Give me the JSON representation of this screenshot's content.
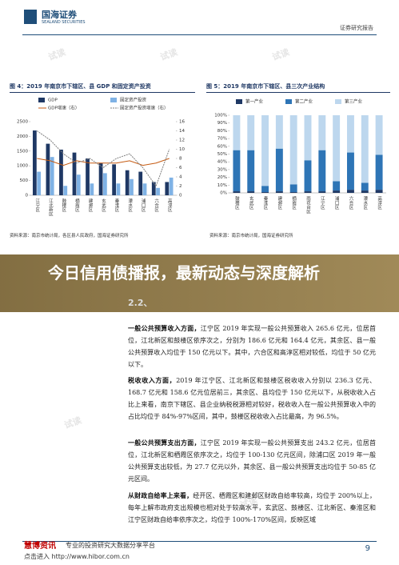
{
  "header": {
    "logo": "国海证券",
    "logo_en": "SEALAND SECURITIES",
    "report_type": "证券研究报告"
  },
  "watermark": "试读",
  "figures": [
    {
      "caption": "图 4：2019 年南京市下辖区、县 GDP 和固定资产投资",
      "source": "资料来源：南京市统计局，各区县人民政府，国海证券研究所",
      "chart_data": {
        "type": "bar",
        "categories": [
          "江宁区",
          "江北新区",
          "鼓楼区",
          "栖霞区",
          "建邺区",
          "玄武区",
          "秦淮区",
          "溧水区",
          "浦口区",
          "六合区",
          "高淳区"
        ],
        "series": [
          {
            "name": "GDP",
            "color": "#1f3864",
            "values": [
              2200,
              1750,
              1550,
              1450,
              1250,
              1100,
              1050,
              850,
              800,
              450,
              450
            ]
          },
          {
            "name": "固定资产投资",
            "color": "#7fb2e5",
            "values": [
              800,
              1300,
              320,
              700,
              400,
              750,
              400,
              550,
              400,
              250,
              600
            ]
          },
          {
            "name": "GDP增速（右）",
            "color": "#c55a11",
            "type": "line",
            "axis": "y2",
            "values": [
              8,
              7.5,
              6.5,
              7.5,
              7,
              7,
              7,
              7.5,
              6.5,
              7,
              8
            ]
          },
          {
            "name": "固定资产投资增速（右）",
            "color": "#7f7f7f",
            "type": "line",
            "dashed": true,
            "axis": "y2",
            "values": [
              14,
              12,
              9,
              7,
              8,
              6,
              8,
              9,
              6,
              2,
              10
            ]
          }
        ],
        "ylim": [
          0,
          2500
        ],
        "yticks": [
          0,
          500,
          1000,
          1500,
          2000,
          2500
        ],
        "y2lim": [
          0,
          16
        ],
        "y2ticks": [
          0,
          2,
          4,
          6,
          8,
          10,
          12,
          14,
          16
        ]
      }
    },
    {
      "caption": "图 5：2019 年南京市下辖区、县三次产业结构",
      "source": "资料来源：南京市统计局，国海证券研究所",
      "chart_data": {
        "type": "stacked_bar",
        "categories": [
          "鼓楼区",
          "玄武区",
          "秦淮区",
          "建邺区",
          "栖霞区",
          "雨花台区",
          "江宁区",
          "浦口区",
          "六合区",
          "溧水区",
          "高淳区"
        ],
        "series": [
          {
            "name": "第一产业",
            "color": "#1f3864",
            "values": [
              2,
              2,
              1,
              2,
              1,
              2,
              2,
              3,
              4,
              3,
              4
            ]
          },
          {
            "name": "第二产业",
            "color": "#2e75b6",
            "values": [
              53,
              53,
              8,
              55,
              10,
              40,
              53,
              12,
              48,
              10,
              45
            ]
          },
          {
            "name": "第三产业",
            "color": "#bdd7ee",
            "values": [
              45,
              45,
              91,
              43,
              89,
              58,
              45,
              85,
              48,
              87,
              51
            ]
          }
        ],
        "ylim": [
          0,
          100
        ],
        "yticks": [
          {
            "value": 0,
            "label": "0%"
          },
          {
            "value": 10,
            "label": "10%"
          },
          {
            "value": 20,
            "label": "20%"
          },
          {
            "value": 30,
            "label": "30%"
          },
          {
            "value": 40,
            "label": "40%"
          },
          {
            "value": 50,
            "label": "50%"
          },
          {
            "value": 60,
            "label": "60%"
          },
          {
            "value": 70,
            "label": "70%"
          },
          {
            "value": 80,
            "label": "80%"
          },
          {
            "value": 90,
            "label": "90%"
          },
          {
            "value": 100,
            "label": "100%"
          }
        ]
      }
    }
  ],
  "banner": {
    "title": "今日信用债播报，最新动态与深度解析"
  },
  "section": {
    "heading": "2.2、"
  },
  "paragraphs": [
    {
      "lead": "一般公共预算收入方面，",
      "text": "江宁区 2019 年实现一般公共预算收入 265.6 亿元，位居首位，江北新区和鼓楼区依序次之，分别为 186.6 亿元和 164.4 亿元，其余区、县一般公共预算收入均位于 150 亿元以下。其中，六合区和高淳区相对较低，均位于 50 亿元以下。"
    },
    {
      "lead": "税收收入方面，",
      "text": "2019 年江宁区、江北新区和鼓楼区税收收入分别以 236.3 亿元、168.7 亿元和 158.6 亿元位居前三，其余区、县均位于 150 亿元以下，从税收收入占比上来看，南京下辖区、县企业纳税税源相对较好，税收收入在一般公共预算收入中的占比均位于 84%-97%区间，其中，鼓楼区税收收入占比最高，为 96.5%。"
    },
    {
      "lead": "一般公共预算支出方面，",
      "text": "江宁区 2019 年实现一般公共预算支出 243.2 亿元，位居首位，江北新区和栖霞区依序次之，均位于 100-130 亿元区间，除浦口区 2019 年一般公共预算支出较低，为 27.7 亿元以外，其余区、县一般公共预算支出均位于 50-85 亿元区间。"
    },
    {
      "lead": "从财政自给率上来看，",
      "text": "经开区、栖霞区和建邺区财政自给率较高，均位于 200%以上，每年上解市政府支出规模也相对处于较高水平，玄武区、鼓楼区、江北新区、秦淮区和江宁区财政自给率依序次之，均位于 100%-170%区间，反映区域"
    }
  ],
  "footer": {
    "brand": "慧博资讯",
    "tagline": "专业的投资研究大数据分享平台",
    "link": "点击进入 http://www.hibor.com.cn",
    "page": "9"
  }
}
